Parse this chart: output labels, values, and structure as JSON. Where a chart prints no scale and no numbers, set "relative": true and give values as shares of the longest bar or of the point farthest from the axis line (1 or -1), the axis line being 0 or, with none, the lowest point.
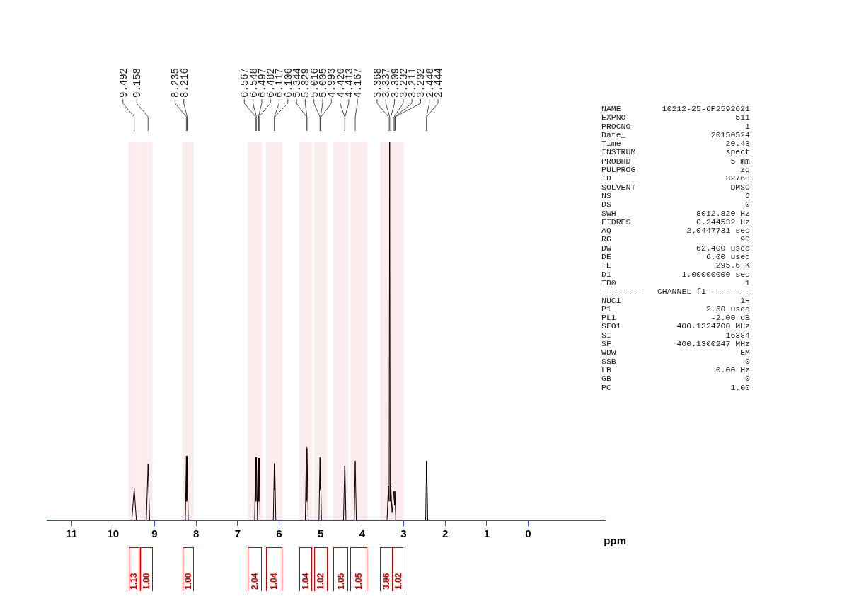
{
  "chart_data": {
    "type": "line",
    "relative": true,
    "xlabel": "ppm",
    "xlim": [
      11.6,
      -1.85
    ],
    "xticks": [
      11,
      10,
      9,
      8,
      7,
      6,
      5,
      4,
      3,
      2,
      1,
      0
    ],
    "grid": false,
    "legend": false,
    "marker": "none",
    "line_style": "solid",
    "series": [
      {
        "color": "#000000",
        "x": [
          11.6,
          9.55,
          9.492,
          9.44,
          9.2,
          9.158,
          9.12,
          8.26,
          8.235,
          8.226,
          8.216,
          8.19,
          6.59,
          6.567,
          6.558,
          6.548,
          6.52,
          6.497,
          6.49,
          6.482,
          6.46,
          6.14,
          6.117,
          6.111,
          6.106,
          6.08,
          5.37,
          5.344,
          5.336,
          5.329,
          5.3,
          5.04,
          5.016,
          5.01,
          5.005,
          4.98,
          4.45,
          4.42,
          4.416,
          4.413,
          4.39,
          4.19,
          4.167,
          4.14,
          3.4,
          3.368,
          3.35,
          3.337,
          3.325,
          3.309,
          3.28,
          3.232,
          3.22,
          3.211,
          3.19,
          2.47,
          2.448,
          2.446,
          2.444,
          2.42,
          -1.85
        ],
        "values": [
          0,
          0,
          0.084,
          0,
          0,
          0.148,
          0,
          0,
          0.17,
          0.05,
          0.17,
          0,
          0,
          0.166,
          0.05,
          0.166,
          0,
          0.164,
          0.05,
          0.164,
          0,
          0,
          0.15,
          0.08,
          0.15,
          0,
          0,
          0.195,
          0.05,
          0.19,
          0,
          0,
          0.166,
          0.08,
          0.16,
          0,
          0,
          0.143,
          0.1,
          0.14,
          0,
          0,
          0.157,
          0,
          0,
          0.09,
          0.05,
          1,
          0.05,
          0.09,
          0.02,
          0.077,
          0.04,
          0.077,
          0,
          0,
          0.157,
          0.1,
          0.155,
          0,
          0
        ]
      }
    ],
    "bands": [
      {
        "axis": "x",
        "from": 9.63,
        "to": 9.36,
        "label": "1.13",
        "color": "#cc0000"
      },
      {
        "axis": "x",
        "from": 9.35,
        "to": 9.05,
        "label": "1.00",
        "color": "#cc0000"
      },
      {
        "axis": "x",
        "from": 8.33,
        "to": 8.06,
        "label": "1.00",
        "color": "#cc0000"
      },
      {
        "axis": "x",
        "from": 6.76,
        "to": 6.41,
        "label": "2.04",
        "color": "#cc0000"
      },
      {
        "axis": "x",
        "from": 6.32,
        "to": 5.93,
        "label": "1.04",
        "color": "#cc0000"
      },
      {
        "axis": "x",
        "from": 5.52,
        "to": 5.21,
        "label": "1.04",
        "color": "#cc0000"
      },
      {
        "axis": "x",
        "from": 5.16,
        "to": 4.84,
        "label": "1.02",
        "color": "#cc0000"
      },
      {
        "axis": "x",
        "from": 4.7,
        "to": 4.33,
        "label": "1.05",
        "color": "#cc0000"
      },
      {
        "axis": "x",
        "from": 4.28,
        "to": 3.87,
        "label": "1.05",
        "color": "#cc0000"
      },
      {
        "axis": "x",
        "from": 3.57,
        "to": 3.27,
        "label": "3.86",
        "color": "#cc0000"
      },
      {
        "axis": "x",
        "from": 3.27,
        "to": 3.0,
        "label": "1.02",
        "color": "#cc0000"
      }
    ],
    "annotations": [
      {
        "text": "9.492",
        "x": 9.492
      },
      {
        "text": "9.158",
        "x": 9.158
      },
      {
        "text": "8.235",
        "x": 8.235
      },
      {
        "text": "8.216",
        "x": 8.216
      },
      {
        "text": "6.567",
        "x": 6.567
      },
      {
        "text": "6.548",
        "x": 6.548
      },
      {
        "text": "6.497",
        "x": 6.497
      },
      {
        "text": "6.482",
        "x": 6.482
      },
      {
        "text": "6.117",
        "x": 6.117
      },
      {
        "text": "6.106",
        "x": 6.106
      },
      {
        "text": "5.344",
        "x": 5.344
      },
      {
        "text": "5.329",
        "x": 5.329
      },
      {
        "text": "5.016",
        "x": 5.016
      },
      {
        "text": "5.005",
        "x": 5.005
      },
      {
        "text": "4.993",
        "x": 4.993
      },
      {
        "text": "4.420",
        "x": 4.42
      },
      {
        "text": "4.413",
        "x": 4.413
      },
      {
        "text": "4.167",
        "x": 4.167
      },
      {
        "text": "3.368",
        "x": 3.368
      },
      {
        "text": "3.337",
        "x": 3.337
      },
      {
        "text": "3.309",
        "x": 3.309
      },
      {
        "text": "3.232",
        "x": 3.232
      },
      {
        "text": "3.211",
        "x": 3.211
      },
      {
        "text": "3.202",
        "x": 3.202
      },
      {
        "text": "2.448",
        "x": 2.448
      },
      {
        "text": "2.444",
        "x": 2.444
      },
      "NAME 10212-25-6P2592621",
      "EXPNO 511",
      "PROCNO 1",
      "Date_ 20150524",
      "Time 20.43",
      "INSTRUM spect",
      "PROBHD 5 mm",
      "PULPROG zg",
      "TD 32768",
      "SOLVENT DMSO",
      "NS 6",
      "DS 0",
      "SWH 8012.820 Hz",
      "FIDRES 0.244532 Hz",
      "AQ 2.0447731 sec",
      "RG 90",
      "DW 62.400 usec",
      "DE 6.00 usec",
      "TE 295.6 K",
      "D1 1.00000000 sec",
      "TD0 1",
      "======== CHANNEL f1 ========",
      "NUC1 1H",
      "P1 2.60 usec",
      "PL1 -2.00 dB",
      "SFO1 400.1324700 MHz",
      "SI 16384",
      "SF 400.1300247 MHz",
      "WDW EM",
      "SSB 0",
      "LB 0.00 Hz",
      "GB 0",
      "PC 1.00"
    ]
  }
}
